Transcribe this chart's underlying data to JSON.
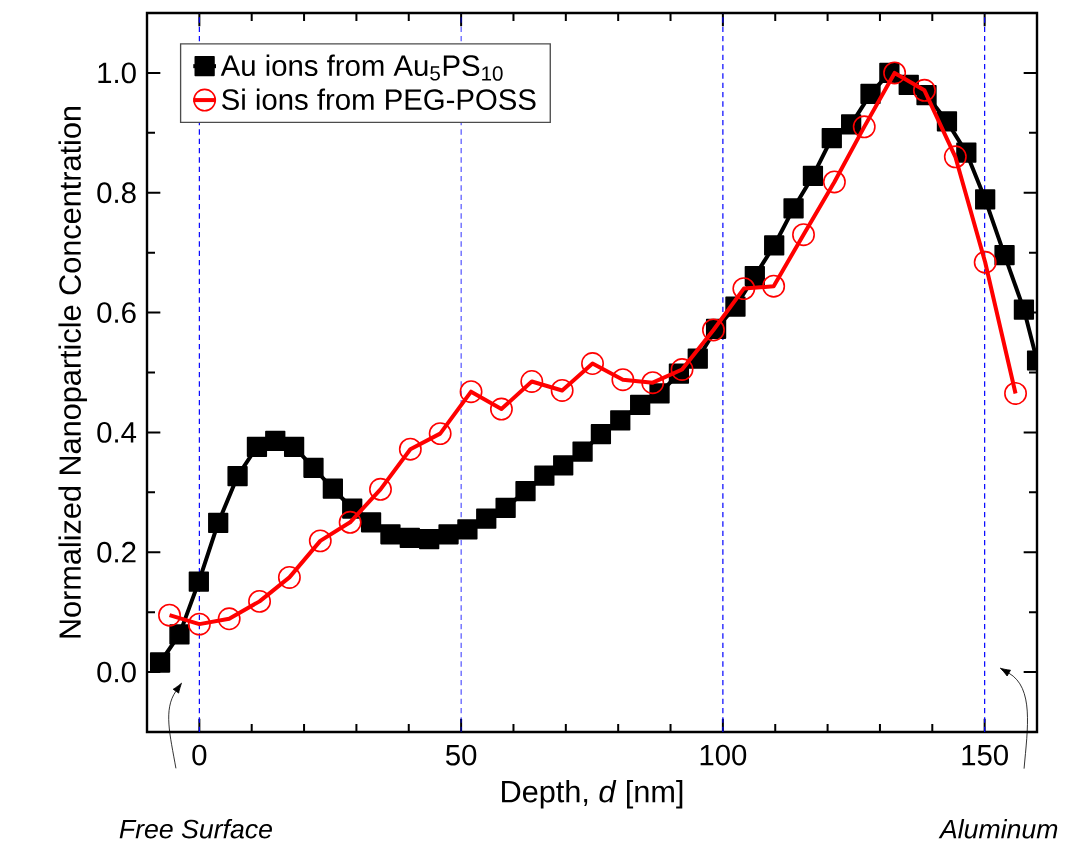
{
  "chart_data": {
    "type": "line",
    "xlabel": "Depth, *d* [nm]",
    "ylabel": "Normalized Nanoparticle Concentration",
    "xlim": [
      -10,
      160
    ],
    "ylim": [
      -0.1,
      1.1
    ],
    "xticks": [
      0,
      50,
      100,
      150
    ],
    "yticks": [
      {
        "value": 0,
        "label": "0.0"
      },
      {
        "value": 0.2,
        "label": "0.2"
      },
      {
        "value": 0.4,
        "label": "0.4"
      },
      {
        "value": 0.6,
        "label": "0.6"
      },
      {
        "value": 0.8,
        "label": "0.8"
      },
      {
        "value": 1.0,
        "label": "1.0"
      }
    ],
    "legend": "top left",
    "line_style": "solid",
    "series": [
      {
        "name": "Au ions from Au$_{5}$PS$_{10}$",
        "color": "#000000",
        "marker": "square",
        "x": [
          -7.5,
          -3.8,
          -0.1,
          3.6,
          7.3,
          11.0,
          14.5,
          18.1,
          21.8,
          25.5,
          29.2,
          32.8,
          36.5,
          40.2,
          43.9,
          47.6,
          51.2,
          54.8,
          58.5,
          62.3,
          65.9,
          69.5,
          73.2,
          76.7,
          80.4,
          84.2,
          87.9,
          91.6,
          95.2,
          98.7,
          102.4,
          106.1,
          109.8,
          113.5,
          117.2,
          120.8,
          124.5,
          128.2,
          131.8,
          135.5,
          138.9,
          142.8,
          146.5,
          150.1,
          153.8,
          157.5,
          160
        ],
        "values": [
          0.016,
          0.063,
          0.151,
          0.249,
          0.327,
          0.376,
          0.386,
          0.376,
          0.341,
          0.306,
          0.273,
          0.25,
          0.23,
          0.224,
          0.222,
          0.23,
          0.238,
          0.256,
          0.274,
          0.302,
          0.328,
          0.345,
          0.368,
          0.397,
          0.42,
          0.446,
          0.465,
          0.498,
          0.523,
          0.573,
          0.61,
          0.661,
          0.712,
          0.774,
          0.828,
          0.891,
          0.914,
          0.965,
          1.0,
          0.98,
          0.963,
          0.919,
          0.867,
          0.789,
          0.696,
          0.605,
          0.52
        ]
      },
      {
        "name": "Si ions from PEG-POSS",
        "color": "#ff0000",
        "marker": "circle",
        "x": [
          -5.7,
          0.0,
          5.7,
          11.5,
          17.2,
          23.1,
          28.8,
          34.6,
          40.3,
          46.0,
          51.9,
          57.7,
          63.5,
          69.3,
          75.1,
          80.9,
          86.6,
          92.2,
          98.2,
          104.0,
          109.7,
          115.4,
          121.3,
          127.0,
          132.8,
          138.5,
          144.4,
          150.1,
          155.9
        ],
        "values": [
          0.095,
          0.08,
          0.089,
          0.118,
          0.158,
          0.219,
          0.25,
          0.305,
          0.372,
          0.398,
          0.468,
          0.439,
          0.485,
          0.47,
          0.515,
          0.488,
          0.483,
          0.505,
          0.571,
          0.64,
          0.644,
          0.73,
          0.818,
          0.91,
          1.0,
          0.971,
          0.86,
          0.684,
          0.465
        ]
      }
    ],
    "ref_lines": [
      {
        "axis": "x",
        "value": 0,
        "color": "#0000ff",
        "line_style": "dashed"
      },
      {
        "axis": "x",
        "value": 50,
        "color": "#0000ff",
        "line_style": "dashed"
      },
      {
        "axis": "x",
        "value": 100,
        "color": "#0000ff",
        "line_style": "dashed"
      },
      {
        "axis": "x",
        "value": 150,
        "color": "#0000ff",
        "line_style": "dashed"
      }
    ],
    "annotations": [
      "*Free Surface*",
      "*Aluminum*"
    ]
  }
}
